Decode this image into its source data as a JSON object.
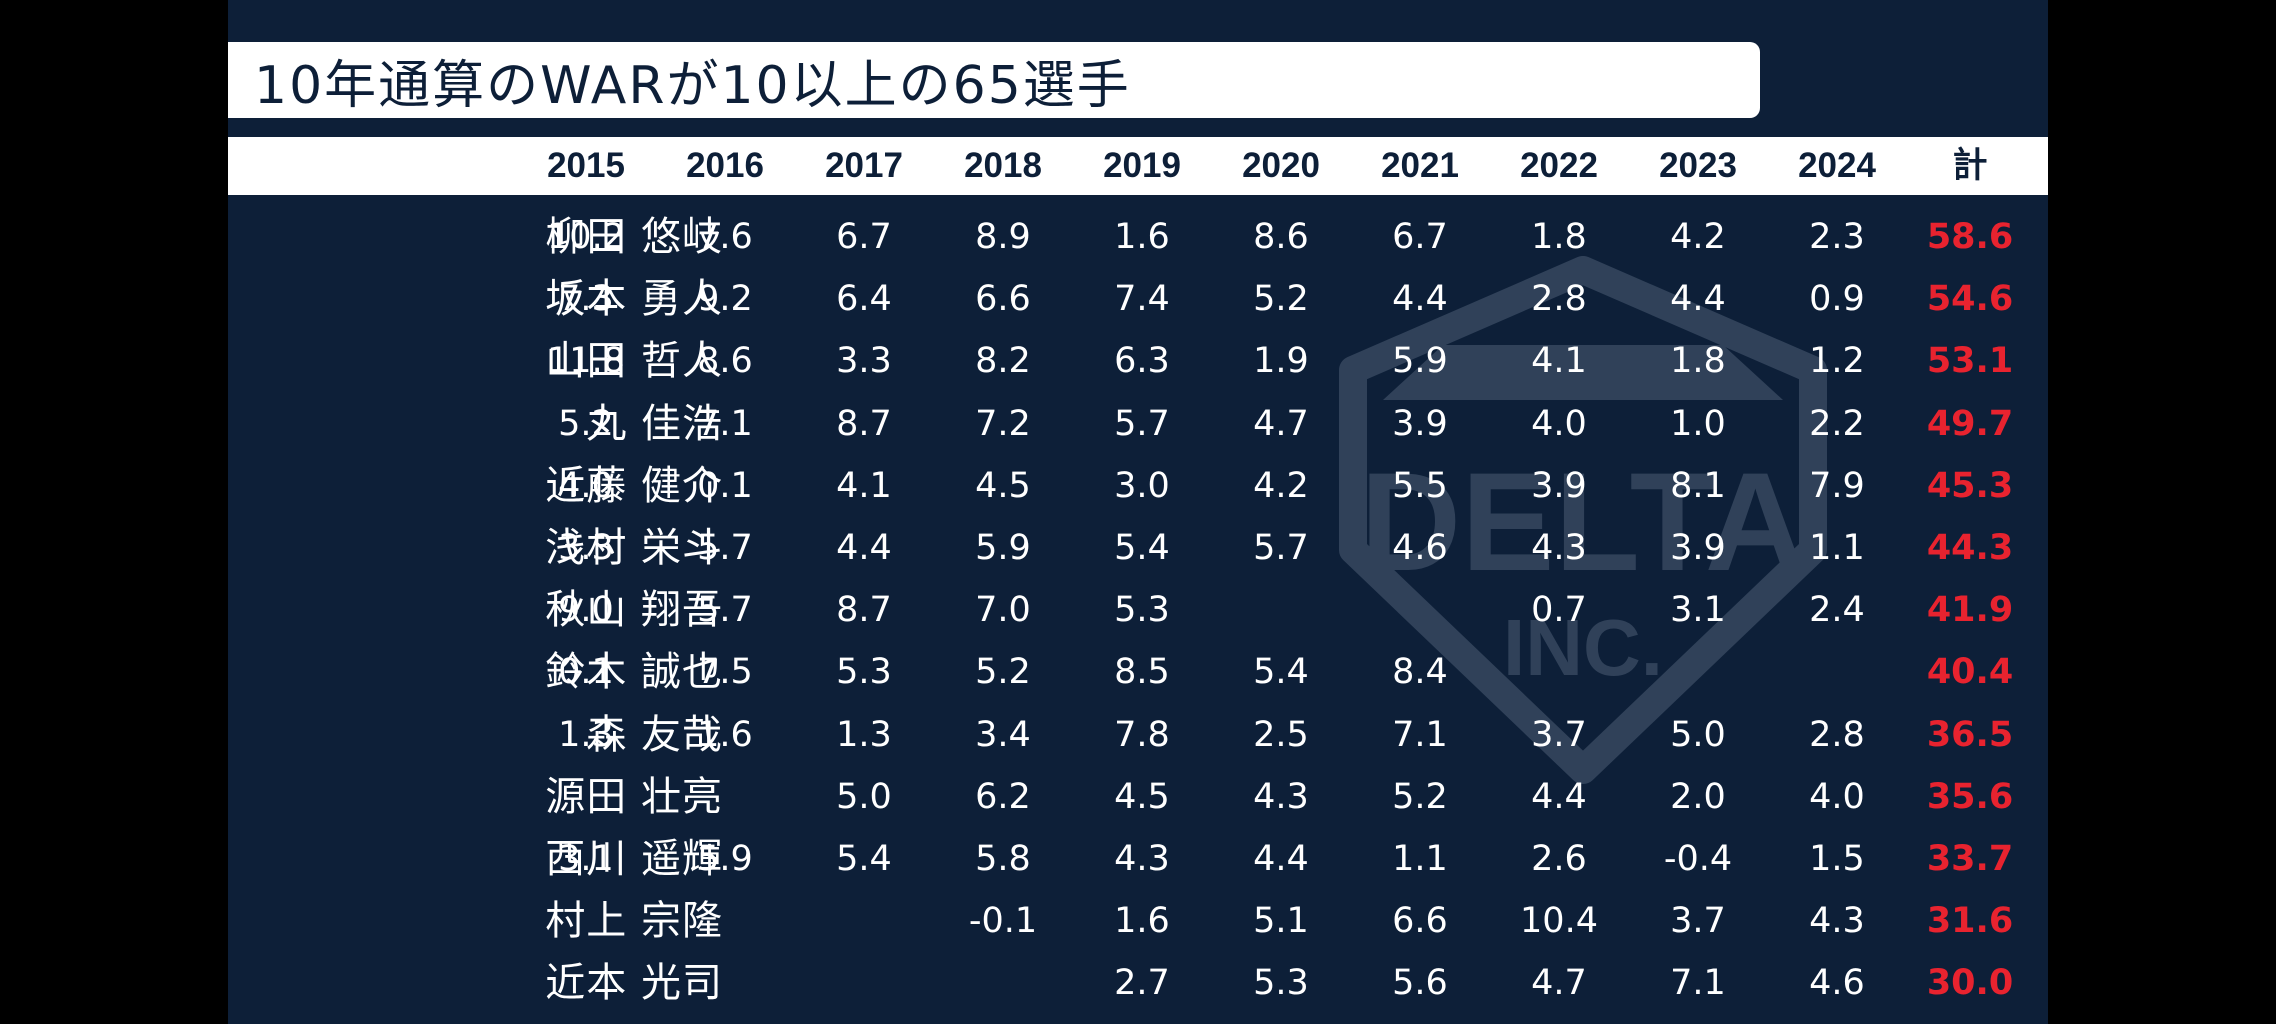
{
  "title": "10年通算のWARが10以上の65選手",
  "watermark": {
    "text_main": "DELTA",
    "text_sub": "INC."
  },
  "colors": {
    "background": "#0d1f38",
    "header": "#ffffff",
    "total": "#e8232f",
    "text": "#ffffff"
  },
  "chart_data": {
    "type": "table",
    "columns": [
      "2015",
      "2016",
      "2017",
      "2018",
      "2019",
      "2020",
      "2021",
      "2022",
      "2023",
      "2024",
      "計"
    ],
    "rows": [
      {
        "name": "柳田 悠岐",
        "values": [
          "10.2",
          "7.6",
          "6.7",
          "8.9",
          "1.6",
          "8.6",
          "6.7",
          "1.8",
          "4.2",
          "2.3"
        ],
        "total": "58.6"
      },
      {
        "name": "坂本 勇人",
        "values": [
          "7.3",
          "9.2",
          "6.4",
          "6.6",
          "7.4",
          "5.2",
          "4.4",
          "2.8",
          "4.4",
          "0.9"
        ],
        "total": "54.6"
      },
      {
        "name": "山田 哲人",
        "values": [
          "11.8",
          "8.6",
          "3.3",
          "8.2",
          "6.3",
          "1.9",
          "5.9",
          "4.1",
          "1.8",
          "1.2"
        ],
        "total": "53.1"
      },
      {
        "name": "丸 佳浩",
        "values": [
          "5.2",
          "7.1",
          "8.7",
          "7.2",
          "5.7",
          "4.7",
          "3.9",
          "4.0",
          "1.0",
          "2.2"
        ],
        "total": "49.7"
      },
      {
        "name": "近藤 健介",
        "values": [
          "4.0",
          "0.1",
          "4.1",
          "4.5",
          "3.0",
          "4.2",
          "5.5",
          "3.9",
          "8.1",
          "7.9"
        ],
        "total": "45.3"
      },
      {
        "name": "浅村 栄斗",
        "values": [
          "3.3",
          "5.7",
          "4.4",
          "5.9",
          "5.4",
          "5.7",
          "4.6",
          "4.3",
          "3.9",
          "1.1"
        ],
        "total": "44.3"
      },
      {
        "name": "秋山 翔吾",
        "values": [
          "9.0",
          "5.7",
          "8.7",
          "7.0",
          "5.3",
          "",
          "",
          "0.7",
          "3.1",
          "2.4"
        ],
        "total": "41.9"
      },
      {
        "name": "鈴木 誠也",
        "values": [
          "0.1",
          "7.5",
          "5.3",
          "5.2",
          "8.5",
          "5.4",
          "8.4",
          "",
          "",
          ""
        ],
        "total": "40.4"
      },
      {
        "name": "森 友哉",
        "values": [
          "1.3",
          "1.6",
          "1.3",
          "3.4",
          "7.8",
          "2.5",
          "7.1",
          "3.7",
          "5.0",
          "2.8"
        ],
        "total": "36.5"
      },
      {
        "name": "源田 壮亮",
        "values": [
          "",
          "",
          "5.0",
          "6.2",
          "4.5",
          "4.3",
          "5.2",
          "4.4",
          "2.0",
          "4.0"
        ],
        "total": "35.6"
      },
      {
        "name": "西川 遥輝",
        "values": [
          "3.1",
          "5.9",
          "5.4",
          "5.8",
          "4.3",
          "4.4",
          "1.1",
          "2.6",
          "-0.4",
          "1.5"
        ],
        "total": "33.7"
      },
      {
        "name": "村上 宗隆",
        "values": [
          "",
          "",
          "",
          "-0.1",
          "1.6",
          "5.1",
          "6.6",
          "10.4",
          "3.7",
          "4.3"
        ],
        "total": "31.6"
      },
      {
        "name": "近本 光司",
        "values": [
          "",
          "",
          "",
          "",
          "2.7",
          "5.3",
          "5.6",
          "4.7",
          "7.1",
          "4.6"
        ],
        "total": "30.0"
      }
    ]
  }
}
